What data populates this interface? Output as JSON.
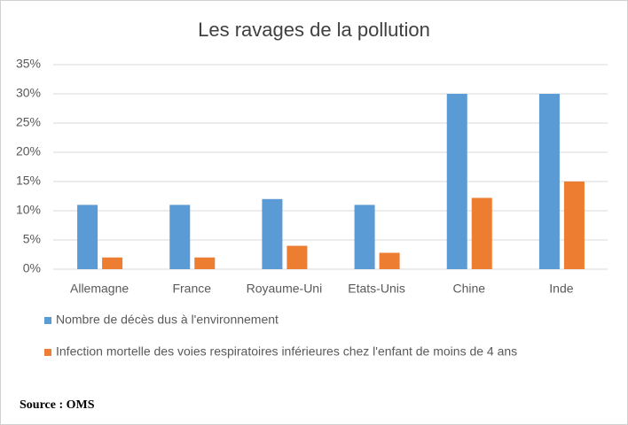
{
  "chart_data": {
    "type": "bar",
    "title": "Les ravages de la pollution",
    "categories": [
      "Allemagne",
      "France",
      "Royaume-Uni",
      "Etats-Unis",
      "Chine",
      "Inde"
    ],
    "series": [
      {
        "name": "Nombre de décès dus à l'environnement",
        "color": "#5b9bd5",
        "values": [
          11,
          11,
          12,
          11,
          30,
          30
        ]
      },
      {
        "name": "Infection mortelle des voies respiratoires inférieures chez l'enfant de moins de 4 ans",
        "color": "#ed7d31",
        "values": [
          2,
          2,
          4,
          2.8,
          12.2,
          15
        ]
      }
    ],
    "ylim": [
      0,
      35
    ],
    "yticks": [
      {
        "value": 0,
        "label": "0%"
      },
      {
        "value": 5,
        "label": "5%"
      },
      {
        "value": 10,
        "label": "10%"
      },
      {
        "value": 15,
        "label": "15%"
      },
      {
        "value": 20,
        "label": "20%"
      },
      {
        "value": 25,
        "label": "25%"
      },
      {
        "value": 30,
        "label": "30%"
      },
      {
        "value": 35,
        "label": "35%"
      }
    ],
    "grid": true,
    "source": "Source : OMS"
  }
}
